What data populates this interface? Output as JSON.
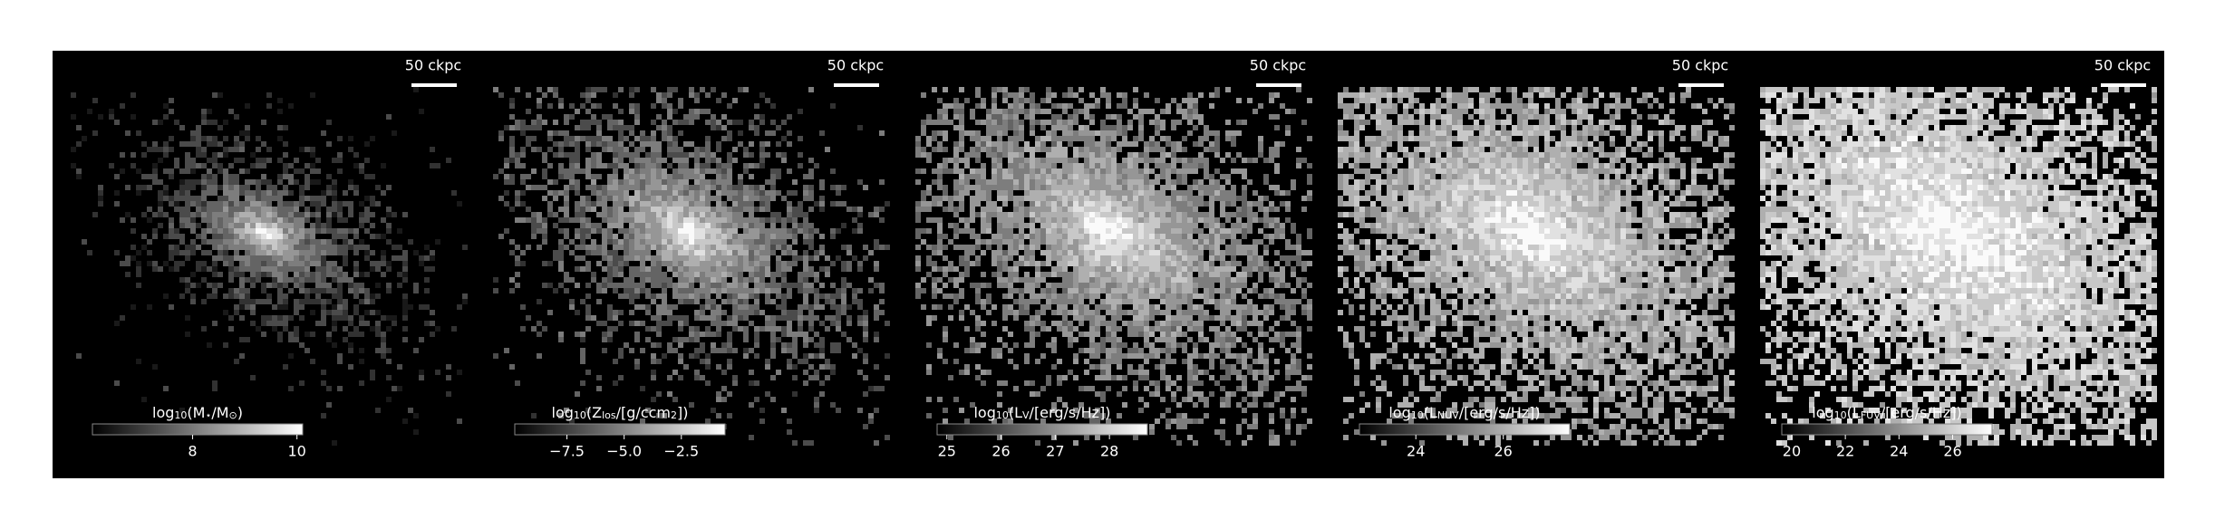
{
  "panels": [
    {
      "scalebar": "50 ckpc",
      "colorbar": {
        "label": [
          "log",
          "10",
          "(M",
          "⋆",
          "/M",
          "⊙",
          ")"
        ],
        "lim": [
          6.08,
          10.11
        ],
        "ticks": [
          8,
          10
        ]
      }
    },
    {
      "scalebar": "50 ckpc",
      "colorbar": {
        "label": [
          "log",
          "10",
          "(Z",
          "los",
          "/[g/ccm",
          "2",
          "])"
        ],
        "lim": [
          -9.78,
          -0.59
        ],
        "ticks": [
          {
            "value": -7.5,
            "label": "−7.5"
          },
          {
            "value": -5.0,
            "label": "−5.0"
          },
          {
            "value": -2.5,
            "label": "−2.5"
          }
        ]
      }
    },
    {
      "scalebar": "50 ckpc",
      "colorbar": {
        "label": [
          "log",
          "10",
          "(L",
          "V",
          "/[erg/s/Hz])"
        ],
        "lim": [
          24.82,
          28.7
        ],
        "ticks": [
          25,
          26,
          27,
          28
        ]
      }
    },
    {
      "scalebar": "50 ckpc",
      "colorbar": {
        "label": [
          "log",
          "10",
          "(L",
          "NUV",
          "/[erg/s/Hz])"
        ],
        "lim": [
          22.71,
          27.52
        ],
        "ticks": [
          24,
          26
        ]
      }
    },
    {
      "scalebar": "50 ckpc",
      "colorbar": {
        "label": [
          "log",
          "10",
          "(L",
          "FUV",
          "/[erg/s/Hz])"
        ],
        "lim": [
          19.63,
          27.47
        ],
        "ticks": [
          20,
          22,
          24,
          26
        ]
      }
    }
  ]
}
